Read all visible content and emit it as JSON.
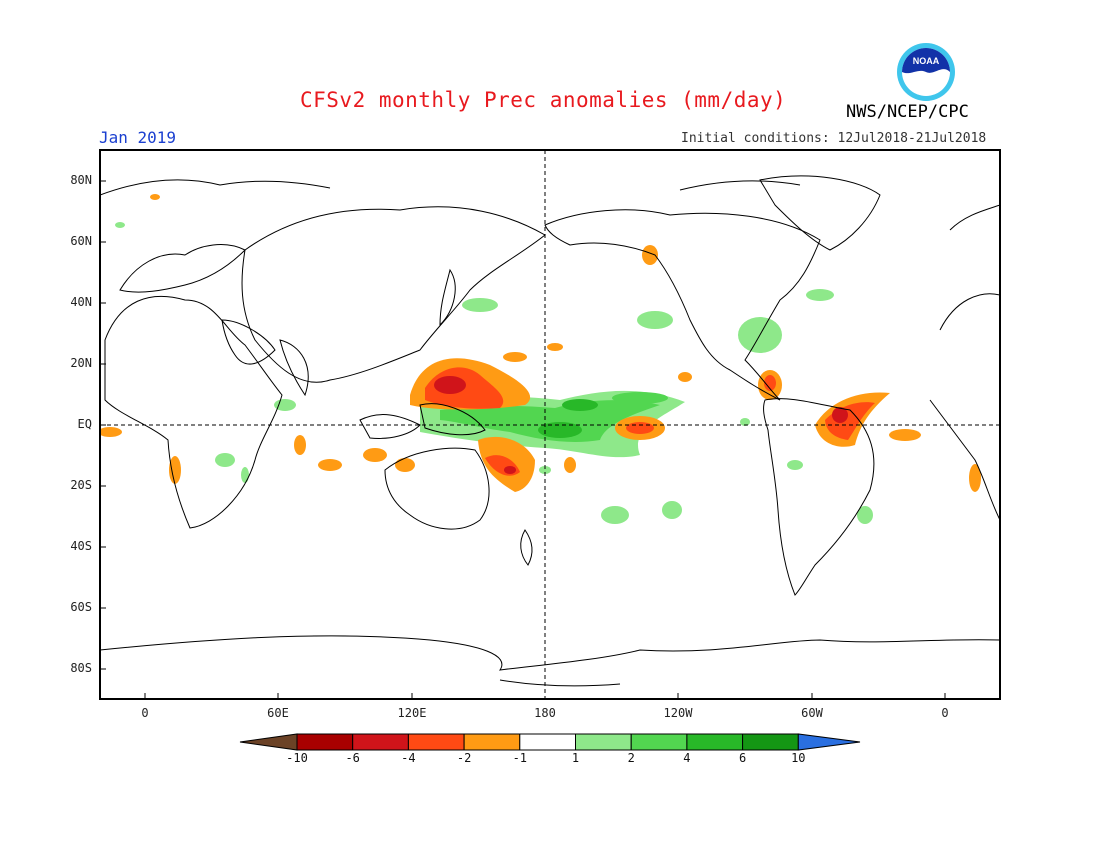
{
  "title": "CFSv2 monthly Prec anomalies (mm/day)",
  "agency": "NWS/NCEP/CPC",
  "logo_text": "NOAA",
  "month": "Jan 2019",
  "initial_conditions": "Initial conditions: 12Jul2018-21Jul2018",
  "colors": {
    "title": "#e8191e",
    "month": "#1a3fd0",
    "coast": "#000000"
  },
  "lat_labels": [
    "80N",
    "60N",
    "40N",
    "20N",
    "EQ",
    "20S",
    "40S",
    "60S",
    "80S"
  ],
  "lon_labels": [
    "0",
    "60E",
    "120E",
    "180",
    "120W",
    "60W",
    "0"
  ],
  "colorbar": {
    "labels": [
      "-10",
      "-6",
      "-4",
      "-2",
      "-1",
      "1",
      "2",
      "4",
      "6",
      "10"
    ],
    "colors": [
      "#6b4226",
      "#a80000",
      "#d0141a",
      "#ff4a14",
      "#ff9b14",
      "#ffffff",
      "#8ee88a",
      "#52d650",
      "#28b828",
      "#149614",
      "#2a6fe0"
    ]
  }
}
